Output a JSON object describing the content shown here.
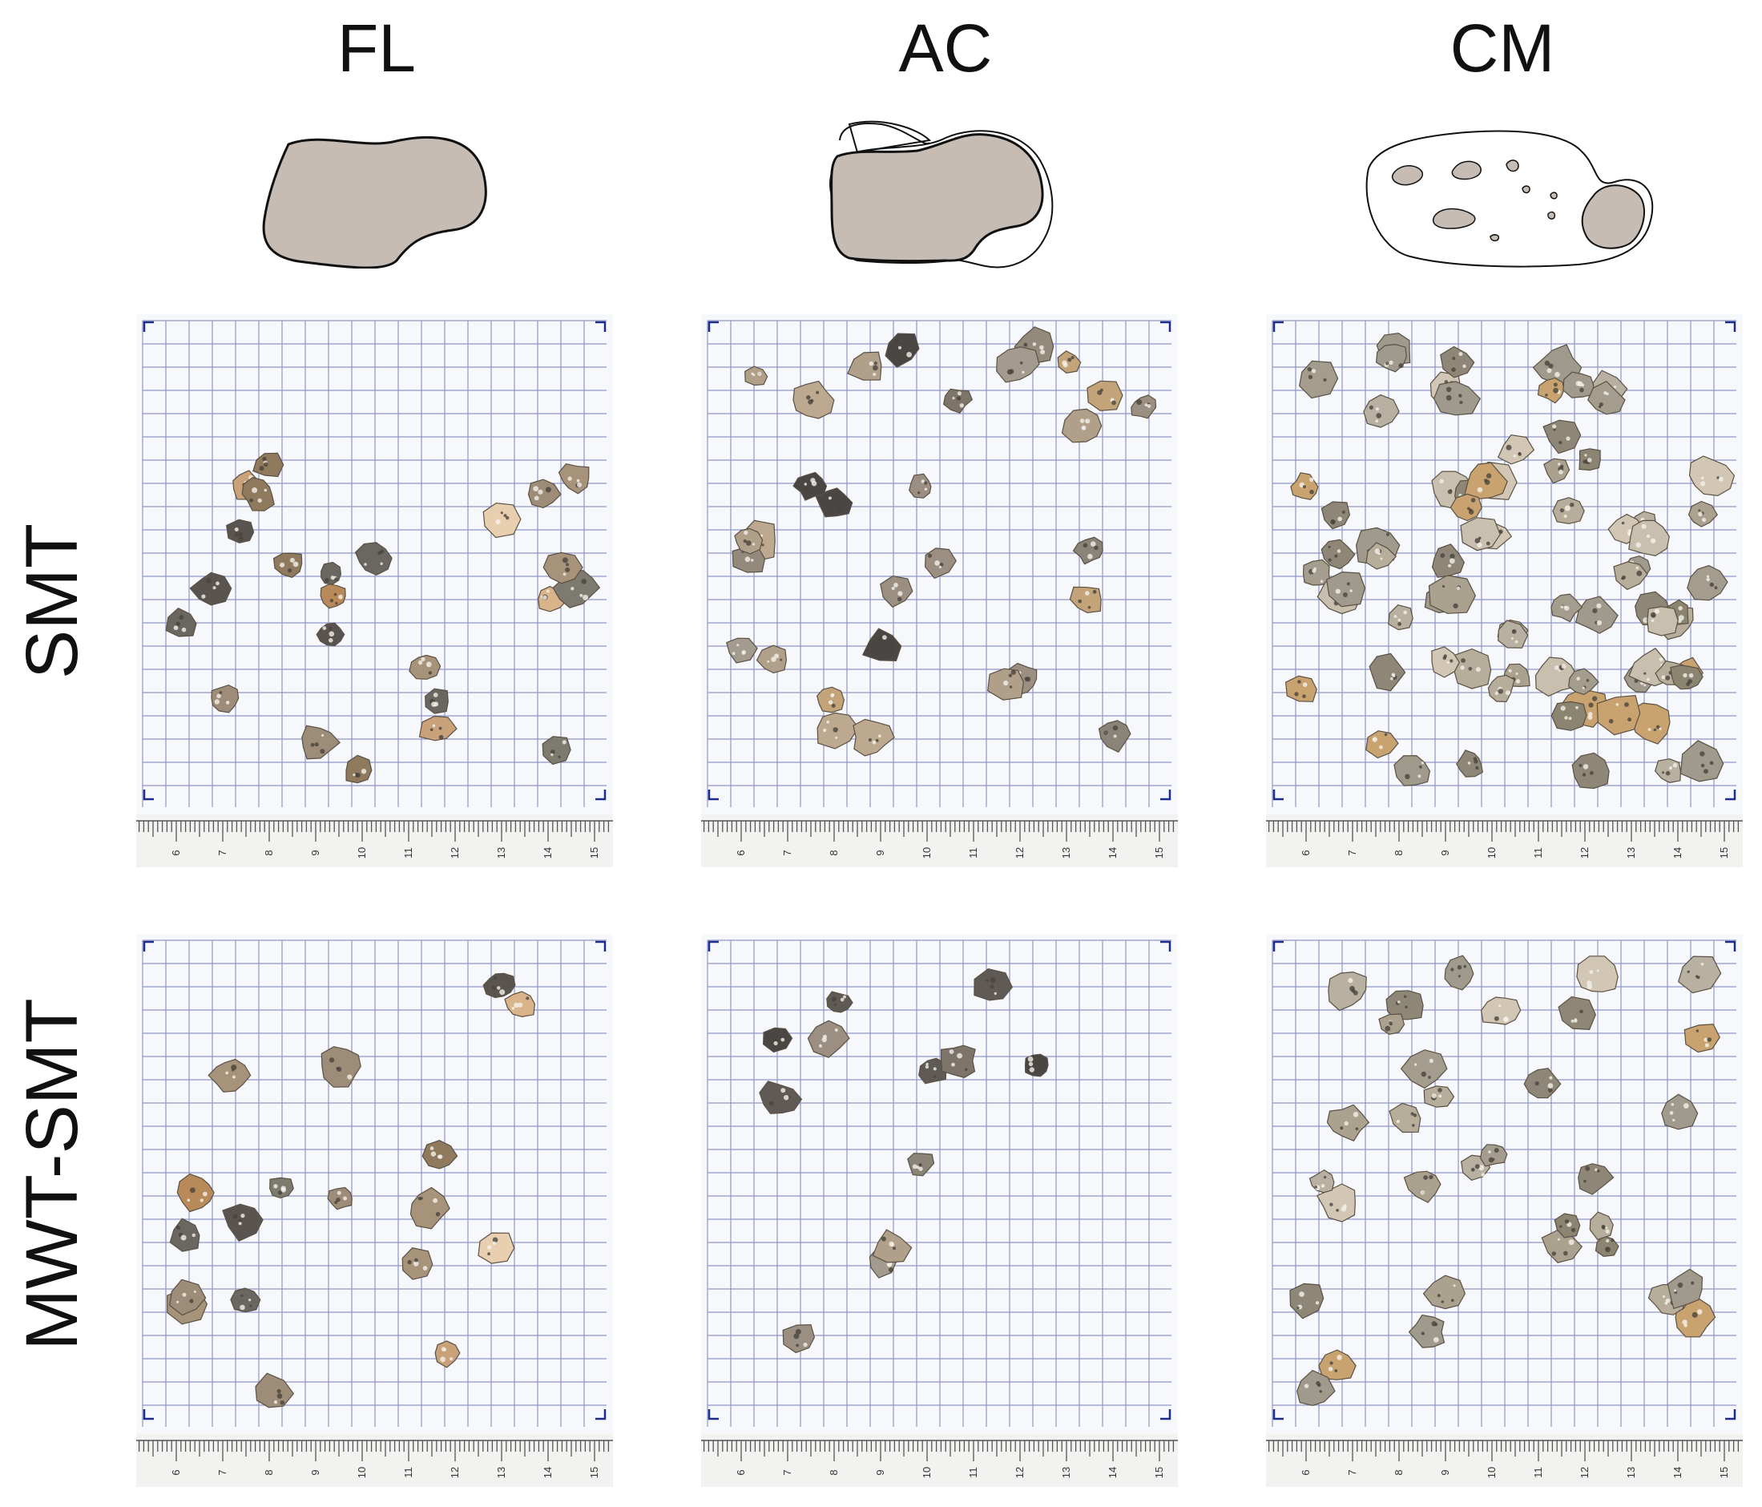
{
  "columns": [
    {
      "label": "FL",
      "diagram": "fl-particle-icon"
    },
    {
      "label": "AC",
      "diagram": "ac-particle-icon"
    },
    {
      "label": "CM",
      "diagram": "cm-particle-icon"
    }
  ],
  "rows": [
    {
      "label": "SMT"
    },
    {
      "label": "MWT-SMT"
    }
  ],
  "panels": [
    {
      "row": "SMT",
      "col": "FL",
      "ruler_numbers": [
        "6",
        "7",
        "8",
        "9",
        "10",
        "11",
        "12",
        "13",
        "14",
        "15"
      ],
      "particle_count": 24
    },
    {
      "row": "SMT",
      "col": "AC",
      "ruler_numbers": [
        "6",
        "7",
        "8",
        "9",
        "10",
        "11",
        "12",
        "13",
        "14",
        "15"
      ],
      "particle_count": 30
    },
    {
      "row": "SMT",
      "col": "CM",
      "ruler_numbers": [
        "6",
        "7",
        "8",
        "9",
        "10",
        "11",
        "12",
        "13",
        "14",
        "15"
      ],
      "particle_count": 75
    },
    {
      "row": "MWT-SMT",
      "col": "FL",
      "ruler_numbers": [
        "6",
        "7",
        "8",
        "9",
        "10",
        "11",
        "12",
        "13",
        "14",
        "15"
      ],
      "particle_count": 18
    },
    {
      "row": "MWT-SMT",
      "col": "AC",
      "ruler_numbers": [
        "6",
        "7",
        "8",
        "9",
        "10",
        "11",
        "12",
        "13",
        "14",
        "15"
      ],
      "particle_count": 12
    },
    {
      "row": "MWT-SMT",
      "col": "CM",
      "ruler_numbers": [
        "6",
        "7",
        "8",
        "9",
        "10",
        "11",
        "12",
        "13",
        "14",
        "15"
      ],
      "particle_count": 34
    }
  ],
  "colors": {
    "diagram_fill": "#c6bcb4",
    "grid_line": "#8f96c8",
    "ruler": "#555555",
    "background": "#ffffff"
  }
}
